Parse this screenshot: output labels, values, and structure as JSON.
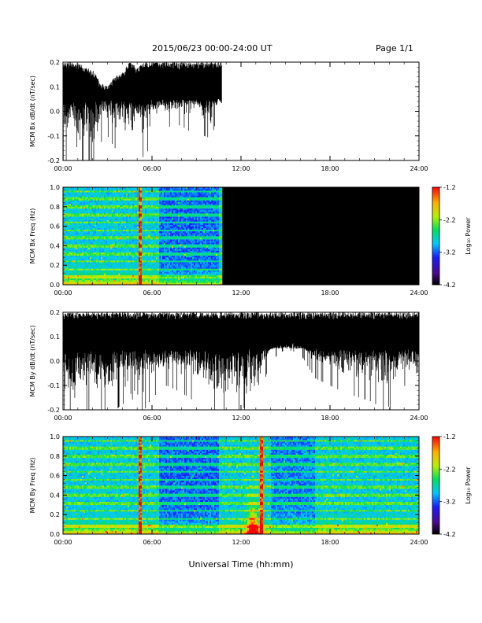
{
  "header": {
    "date_range": "2015/06/23  00:00-24:00 UT",
    "page": "Page 1/1"
  },
  "x_axis_title": "Universal Time (hh:mm)",
  "chart_data": [
    {
      "type": "line",
      "ylabel": "MCM Bx dB/dt (nT/sec)",
      "xlim_hours": [
        0,
        24
      ],
      "ylim": [
        -0.2,
        0.2
      ],
      "x_ticks": [
        "00:00",
        "06:00",
        "12:00",
        "18:00",
        "24:00"
      ],
      "y_ticks": [
        "-0.2",
        "-0.1",
        "0.0",
        "0.1",
        "0.2"
      ],
      "data_end_hour": 10.7,
      "envelope": {
        "hours": [
          0,
          0.5,
          1,
          1.5,
          2,
          2.5,
          3,
          3.5,
          4,
          4.5,
          5,
          5.5,
          6,
          6.5,
          7,
          7.5,
          8,
          8.5,
          9,
          9.5,
          10,
          10.5,
          10.7
        ],
        "lower": [
          -0.2,
          -0.12,
          -0.2,
          -0.15,
          -0.2,
          -0.08,
          -0.05,
          -0.1,
          -0.07,
          -0.13,
          -0.08,
          -0.15,
          -0.06,
          -0.04,
          -0.02,
          0.0,
          -0.01,
          -0.03,
          0.02,
          -0.05,
          -0.06,
          0.05,
          0.0
        ],
        "upper": [
          0.2,
          0.2,
          0.2,
          0.18,
          0.17,
          0.12,
          0.1,
          0.15,
          0.16,
          0.2,
          0.18,
          0.2,
          0.2,
          0.2,
          0.2,
          0.2,
          0.2,
          0.2,
          0.2,
          0.2,
          0.2,
          0.2,
          0.2
        ]
      }
    },
    {
      "type": "heatmap",
      "ylabel": "MCM Bx Freq (Hz)",
      "xlim_hours": [
        0,
        24
      ],
      "ylim": [
        0.0,
        1.0
      ],
      "x_ticks": [
        "00:00",
        "06:00",
        "12:00",
        "18:00",
        "24:00"
      ],
      "y_ticks": [
        "0.0",
        "0.2",
        "0.4",
        "0.6",
        "0.8",
        "1.0"
      ],
      "data_end_hour": 10.7,
      "colorbar": {
        "label": "Log₁₀ Power",
        "ticks": [
          "-1.2",
          "-2.2",
          "-3.2",
          "-4.2"
        ],
        "range": [
          -4.2,
          -1.2
        ]
      },
      "bright_lines_hours": [
        5.2
      ],
      "band_freqs_hz": [
        0.08,
        0.16,
        0.24,
        0.32,
        0.4,
        0.48,
        0.56,
        0.64,
        0.72,
        0.8,
        0.88,
        0.96
      ]
    },
    {
      "type": "line",
      "ylabel": "MCM By dB/dt (nT/sec)",
      "xlim_hours": [
        0,
        24
      ],
      "ylim": [
        -0.2,
        0.2
      ],
      "x_ticks": [
        "00:00",
        "06:00",
        "12:00",
        "18:00",
        "24:00"
      ],
      "y_ticks": [
        "-0.2",
        "-0.1",
        "0.0",
        "0.1",
        "0.2"
      ],
      "data_end_hour": 24,
      "envelope": {
        "hours": [
          0,
          1,
          2,
          3,
          4,
          5,
          6,
          7,
          8,
          9,
          10,
          11,
          11.5,
          12,
          12.5,
          13,
          13.5,
          14,
          15,
          16,
          17,
          18,
          19,
          20,
          21,
          22,
          23,
          24
        ],
        "lower": [
          -0.2,
          -0.2,
          -0.15,
          -0.2,
          -0.12,
          -0.2,
          -0.1,
          -0.05,
          -0.08,
          -0.12,
          -0.15,
          -0.18,
          -0.2,
          -0.2,
          -0.2,
          -0.2,
          -0.05,
          0.05,
          0.1,
          0.08,
          -0.02,
          -0.05,
          -0.08,
          -0.1,
          -0.12,
          -0.2,
          -0.05,
          -0.1
        ],
        "upper": [
          0.2,
          0.2,
          0.2,
          0.2,
          0.2,
          0.2,
          0.2,
          0.2,
          0.2,
          0.2,
          0.2,
          0.2,
          0.2,
          0.2,
          0.2,
          0.2,
          0.2,
          0.2,
          0.2,
          0.2,
          0.2,
          0.2,
          0.2,
          0.2,
          0.2,
          0.2,
          0.2,
          0.2
        ]
      }
    },
    {
      "type": "heatmap",
      "ylabel": "MCM By Freq (Hz)",
      "xlim_hours": [
        0,
        24
      ],
      "ylim": [
        0.0,
        1.0
      ],
      "x_ticks": [
        "00:00",
        "06:00",
        "12:00",
        "18:00",
        "24:00"
      ],
      "y_ticks": [
        "0.0",
        "0.2",
        "0.4",
        "0.6",
        "0.8",
        "1.0"
      ],
      "data_end_hour": 24,
      "colorbar": {
        "label": "Log₁₀ Power",
        "ticks": [
          "-1.2",
          "-2.2",
          "-3.2",
          "-4.2"
        ],
        "range": [
          -4.2,
          -1.2
        ]
      },
      "bright_lines_hours": [
        5.2,
        13.4
      ],
      "hot_event_hour": 12.8,
      "band_freqs_hz": [
        0.08,
        0.16,
        0.24,
        0.32,
        0.4,
        0.48,
        0.56,
        0.64,
        0.72,
        0.8,
        0.88,
        0.96
      ]
    }
  ]
}
